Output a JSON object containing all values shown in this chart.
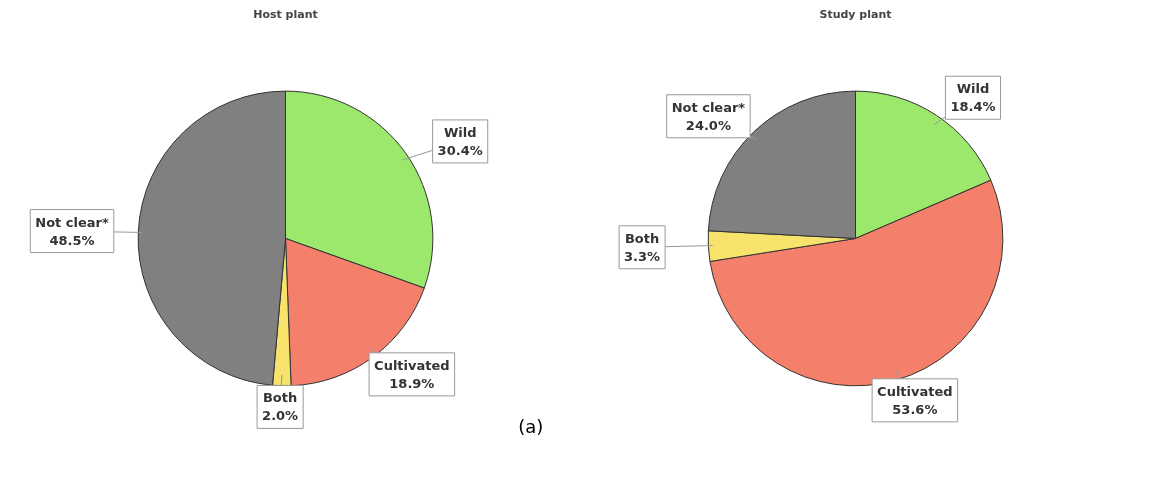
{
  "chart_data": [
    {
      "type": "pie",
      "title": "Host plant",
      "categories": [
        "Wild",
        "Cultivated",
        "Both",
        "Not clear*"
      ],
      "values": [
        30.4,
        18.9,
        2.0,
        48.5
      ],
      "value_labels": [
        "30.4%",
        "18.9%",
        "2.0%",
        "48.5%"
      ],
      "colors": [
        "#9ce86c",
        "#f47f6b",
        "#f7e26b",
        "#808080"
      ],
      "annotations": [
        "(a)"
      ]
    },
    {
      "type": "pie",
      "title": "Study plant",
      "categories": [
        "Wild",
        "Cultivated",
        "Both",
        "Not clear*"
      ],
      "values": [
        18.4,
        53.6,
        3.3,
        24.0
      ],
      "value_labels": [
        "18.4%",
        "53.6%",
        "3.3%",
        "24.0%"
      ],
      "colors": [
        "#9ce86c",
        "#f47f6b",
        "#f7e26b",
        "#808080"
      ]
    }
  ]
}
